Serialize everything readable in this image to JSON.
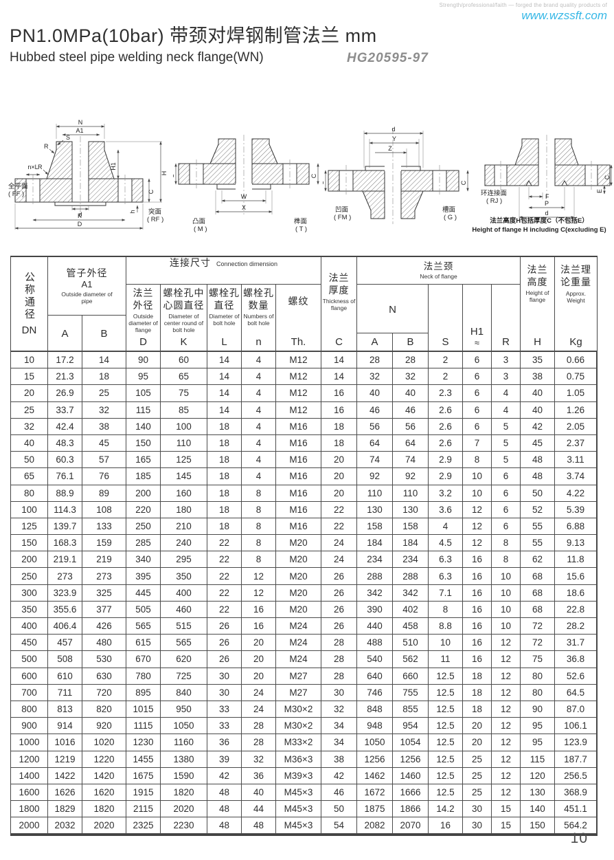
{
  "brand": {
    "tagline": "Strength/professional/faith — forged the brand quality products of",
    "website": "www.wzssft.com"
  },
  "title": {
    "main": "PN1.0MPa(10bar) 带颈对焊钢制管法兰  mm",
    "sub": "Hubbed steel pipe welding neck flange(WN)",
    "standard": "HG20595-97"
  },
  "diagrams": {
    "d1": {
      "face_left_zh": "全平面",
      "face_left_code": "( FF )",
      "face_right_zh": "突面",
      "face_right_code": "( RF )",
      "dims": {
        "n": "N",
        "a1": "A1",
        "s": "S",
        "r1": "R",
        "r2": "R",
        "nxl": "n×L",
        "h1": "H1",
        "h": "H",
        "c": "C",
        "hsmall": "h",
        "d": "d",
        "k": "K",
        "dbig": "D"
      }
    },
    "d2": {
      "face_left_zh": "凸面",
      "face_left_code": "( M )",
      "face_right_zh": "榫面",
      "face_right_code": "( T )",
      "dims": {
        "w": "W",
        "x": "X",
        "c_left": "C",
        "c_right": "C"
      }
    },
    "d3": {
      "face_left_zh": "凹面",
      "face_left_code": "( FM )",
      "face_right_zh": "槽面",
      "face_right_code": "( G )",
      "dims": {
        "d": "d",
        "y": "Y",
        "z": "Z",
        "c_left": "C",
        "c_right": "C"
      }
    },
    "d4": {
      "face_zh": "环连接面",
      "face_code": "( RJ )",
      "dims": {
        "f": "F",
        "p": "P",
        "d": "d",
        "e": "E",
        "c": "C"
      },
      "caption_zh": "法兰高度H包括厚度C（不包括E）",
      "caption_en": "Height of flange H including C(excluding E)"
    }
  },
  "table": {
    "header": {
      "dn": {
        "zh": "公称通径",
        "code": "DN"
      },
      "pipe": {
        "zh": "管子外径",
        "sub": "A1",
        "en": "Outside diameter of pipe",
        "a": "A",
        "b": "B"
      },
      "conn": {
        "zh": "连接尺寸",
        "en": "Connection dimension"
      },
      "d": {
        "zh": "法兰外径",
        "en": "Outside diameter of flange",
        "code": "D"
      },
      "k": {
        "zh": "螺栓孔中心圆直径",
        "en": "Diameter of center round of bolt hole",
        "code": "K"
      },
      "l": {
        "zh": "螺栓孔直径",
        "en": "Diameter of bolt hole",
        "code": "L"
      },
      "n": {
        "zh": "螺栓孔数量",
        "en": "Numbers of bolt hole",
        "code": "n"
      },
      "th": {
        "zh": "螺纹",
        "code": "Th."
      },
      "c": {
        "zh": "法兰厚度",
        "en": "Thickness of flange",
        "code": "C"
      },
      "neck": {
        "zh": "法兰颈",
        "en": "Neck of flange"
      },
      "nn": {
        "code": "N",
        "a": "A",
        "b": "B"
      },
      "s": {
        "code": "S"
      },
      "h1": {
        "code": "H1",
        "approx": "≈"
      },
      "r": {
        "code": "R"
      },
      "h": {
        "zh": "法兰高度",
        "en": "Height of flange",
        "code": "H"
      },
      "kg": {
        "zh": "法兰理论重量",
        "en": "Approx. Weight",
        "code": "Kg"
      }
    },
    "rows": [
      [
        "10",
        "17.2",
        "14",
        "90",
        "60",
        "14",
        "4",
        "M12",
        "14",
        "28",
        "28",
        "2",
        "6",
        "3",
        "35",
        "0.66"
      ],
      [
        "15",
        "21.3",
        "18",
        "95",
        "65",
        "14",
        "4",
        "M12",
        "14",
        "32",
        "32",
        "2",
        "6",
        "3",
        "38",
        "0.75"
      ],
      [
        "20",
        "26.9",
        "25",
        "105",
        "75",
        "14",
        "4",
        "M12",
        "16",
        "40",
        "40",
        "2.3",
        "6",
        "4",
        "40",
        "1.05"
      ],
      [
        "25",
        "33.7",
        "32",
        "115",
        "85",
        "14",
        "4",
        "M12",
        "16",
        "46",
        "46",
        "2.6",
        "6",
        "4",
        "40",
        "1.26"
      ],
      [
        "32",
        "42.4",
        "38",
        "140",
        "100",
        "18",
        "4",
        "M16",
        "18",
        "56",
        "56",
        "2.6",
        "6",
        "5",
        "42",
        "2.05"
      ],
      [
        "40",
        "48.3",
        "45",
        "150",
        "110",
        "18",
        "4",
        "M16",
        "18",
        "64",
        "64",
        "2.6",
        "7",
        "5",
        "45",
        "2.37"
      ],
      [
        "50",
        "60.3",
        "57",
        "165",
        "125",
        "18",
        "4",
        "M16",
        "20",
        "74",
        "74",
        "2.9",
        "8",
        "5",
        "48",
        "3.11"
      ],
      [
        "65",
        "76.1",
        "76",
        "185",
        "145",
        "18",
        "4",
        "M16",
        "20",
        "92",
        "92",
        "2.9",
        "10",
        "6",
        "48",
        "3.74"
      ],
      [
        "80",
        "88.9",
        "89",
        "200",
        "160",
        "18",
        "8",
        "M16",
        "20",
        "110",
        "110",
        "3.2",
        "10",
        "6",
        "50",
        "4.22"
      ],
      [
        "100",
        "114.3",
        "108",
        "220",
        "180",
        "18",
        "8",
        "M16",
        "22",
        "130",
        "130",
        "3.6",
        "12",
        "6",
        "52",
        "5.39"
      ],
      [
        "125",
        "139.7",
        "133",
        "250",
        "210",
        "18",
        "8",
        "M16",
        "22",
        "158",
        "158",
        "4",
        "12",
        "6",
        "55",
        "6.88"
      ],
      [
        "150",
        "168.3",
        "159",
        "285",
        "240",
        "22",
        "8",
        "M20",
        "24",
        "184",
        "184",
        "4.5",
        "12",
        "8",
        "55",
        "9.13"
      ],
      [
        "200",
        "219.1",
        "219",
        "340",
        "295",
        "22",
        "8",
        "M20",
        "24",
        "234",
        "234",
        "6.3",
        "16",
        "8",
        "62",
        "11.8"
      ],
      [
        "250",
        "273",
        "273",
        "395",
        "350",
        "22",
        "12",
        "M20",
        "26",
        "288",
        "288",
        "6.3",
        "16",
        "10",
        "68",
        "15.6"
      ],
      [
        "300",
        "323.9",
        "325",
        "445",
        "400",
        "22",
        "12",
        "M20",
        "26",
        "342",
        "342",
        "7.1",
        "16",
        "10",
        "68",
        "18.6"
      ],
      [
        "350",
        "355.6",
        "377",
        "505",
        "460",
        "22",
        "16",
        "M20",
        "26",
        "390",
        "402",
        "8",
        "16",
        "10",
        "68",
        "22.8"
      ],
      [
        "400",
        "406.4",
        "426",
        "565",
        "515",
        "26",
        "16",
        "M24",
        "26",
        "440",
        "458",
        "8.8",
        "16",
        "10",
        "72",
        "28.2"
      ],
      [
        "450",
        "457",
        "480",
        "615",
        "565",
        "26",
        "20",
        "M24",
        "28",
        "488",
        "510",
        "10",
        "16",
        "12",
        "72",
        "31.7"
      ],
      [
        "500",
        "508",
        "530",
        "670",
        "620",
        "26",
        "20",
        "M24",
        "28",
        "540",
        "562",
        "11",
        "16",
        "12",
        "75",
        "36.8"
      ],
      [
        "600",
        "610",
        "630",
        "780",
        "725",
        "30",
        "20",
        "M27",
        "28",
        "640",
        "660",
        "12.5",
        "18",
        "12",
        "80",
        "52.6"
      ],
      [
        "700",
        "711",
        "720",
        "895",
        "840",
        "30",
        "24",
        "M27",
        "30",
        "746",
        "755",
        "12.5",
        "18",
        "12",
        "80",
        "64.5"
      ],
      [
        "800",
        "813",
        "820",
        "1015",
        "950",
        "33",
        "24",
        "M30×2",
        "32",
        "848",
        "855",
        "12.5",
        "18",
        "12",
        "90",
        "87.0"
      ],
      [
        "900",
        "914",
        "920",
        "1115",
        "1050",
        "33",
        "28",
        "M30×2",
        "34",
        "948",
        "954",
        "12.5",
        "20",
        "12",
        "95",
        "106.1"
      ],
      [
        "1000",
        "1016",
        "1020",
        "1230",
        "1160",
        "36",
        "28",
        "M33×2",
        "34",
        "1050",
        "1054",
        "12.5",
        "20",
        "12",
        "95",
        "123.9"
      ],
      [
        "1200",
        "1219",
        "1220",
        "1455",
        "1380",
        "39",
        "32",
        "M36×3",
        "38",
        "1256",
        "1256",
        "12.5",
        "25",
        "12",
        "115",
        "187.7"
      ],
      [
        "1400",
        "1422",
        "1420",
        "1675",
        "1590",
        "42",
        "36",
        "M39×3",
        "42",
        "1462",
        "1460",
        "12.5",
        "25",
        "12",
        "120",
        "256.5"
      ],
      [
        "1600",
        "1626",
        "1620",
        "1915",
        "1820",
        "48",
        "40",
        "M45×3",
        "46",
        "1672",
        "1666",
        "12.5",
        "25",
        "12",
        "130",
        "368.9"
      ],
      [
        "1800",
        "1829",
        "1820",
        "2115",
        "2020",
        "48",
        "44",
        "M45×3",
        "50",
        "1875",
        "1866",
        "14.2",
        "30",
        "15",
        "140",
        "451.1"
      ],
      [
        "2000",
        "2032",
        "2020",
        "2325",
        "2230",
        "48",
        "48",
        "M45×3",
        "54",
        "2082",
        "2070",
        "16",
        "30",
        "15",
        "150",
        "564.2"
      ]
    ]
  },
  "page_number": "10"
}
